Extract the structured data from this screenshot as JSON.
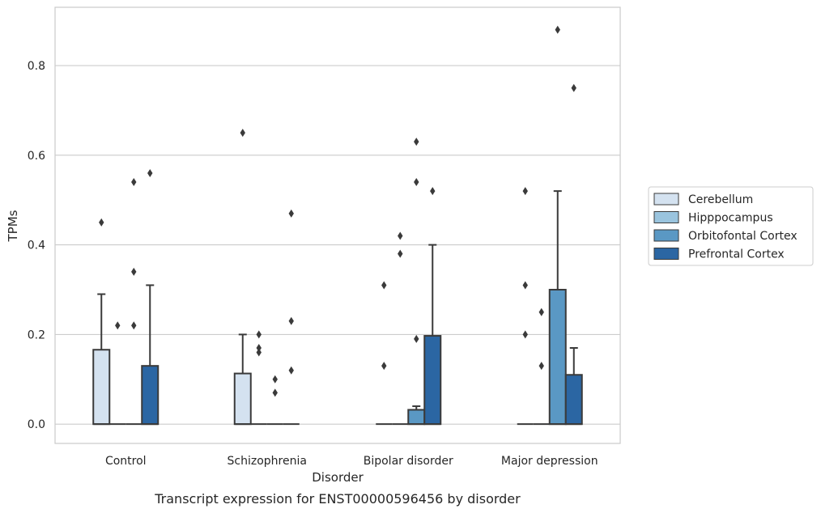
{
  "chart_data": {
    "type": "box",
    "title": "",
    "caption": "Transcript expression for ENST00000596456 by disorder",
    "xlabel": "Disorder",
    "ylabel": "TPMs",
    "ylim": [
      -0.043,
      0.93
    ],
    "yticks": [
      0.0,
      0.2,
      0.4,
      0.6,
      0.8
    ],
    "ytick_labels": [
      "0.0",
      "0.2",
      "0.4",
      "0.6",
      "0.8"
    ],
    "grid": true,
    "legend_position": "right",
    "categories": [
      "Control",
      "Schizophrenia",
      "Bipolar disorder",
      "Major depression"
    ],
    "series": [
      {
        "name": "Cerebellum",
        "color": "#d4e2f0",
        "boxes": [
          {
            "q1": 0.0,
            "median": 0.0,
            "q3": 0.166,
            "whisker_low": 0.0,
            "whisker_high": 0.29,
            "outliers": [
              0.45
            ]
          },
          {
            "q1": 0.0,
            "median": 0.0,
            "q3": 0.113,
            "whisker_low": 0.0,
            "whisker_high": 0.2,
            "outliers": [
              0.65
            ]
          },
          {
            "q1": 0.0,
            "median": 0.0,
            "q3": 0.0,
            "whisker_low": 0.0,
            "whisker_high": 0.0,
            "outliers": [
              0.31,
              0.13
            ]
          },
          {
            "q1": 0.0,
            "median": 0.0,
            "q3": 0.0,
            "whisker_low": 0.0,
            "whisker_high": 0.0,
            "outliers": [
              0.52,
              0.31,
              0.2
            ]
          }
        ]
      },
      {
        "name": "Hipppocampus",
        "color": "#9ac4de",
        "boxes": [
          {
            "q1": 0.0,
            "median": 0.0,
            "q3": 0.0,
            "whisker_low": 0.0,
            "whisker_high": 0.0,
            "outliers": [
              0.22
            ]
          },
          {
            "q1": 0.0,
            "median": 0.0,
            "q3": 0.0,
            "whisker_low": 0.0,
            "whisker_high": 0.0,
            "outliers": [
              0.2,
              0.17,
              0.16
            ]
          },
          {
            "q1": 0.0,
            "median": 0.0,
            "q3": 0.0,
            "whisker_low": 0.0,
            "whisker_high": 0.0,
            "outliers": [
              0.42,
              0.38
            ]
          },
          {
            "q1": 0.0,
            "median": 0.0,
            "q3": 0.0,
            "whisker_low": 0.0,
            "whisker_high": 0.0,
            "outliers": [
              0.25,
              0.13
            ]
          }
        ]
      },
      {
        "name": "Orbitofontal Cortex",
        "color": "#5a98c4",
        "boxes": [
          {
            "q1": 0.0,
            "median": 0.0,
            "q3": 0.0,
            "whisker_low": 0.0,
            "whisker_high": 0.0,
            "outliers": [
              0.54,
              0.34,
              0.22
            ]
          },
          {
            "q1": 0.0,
            "median": 0.0,
            "q3": 0.0,
            "whisker_low": 0.0,
            "whisker_high": 0.0,
            "outliers": [
              0.1,
              0.07
            ]
          },
          {
            "q1": 0.0,
            "median": 0.0,
            "q3": 0.032,
            "whisker_low": 0.0,
            "whisker_high": 0.04,
            "outliers": [
              0.63,
              0.54,
              0.19
            ]
          },
          {
            "q1": 0.0,
            "median": 0.0,
            "q3": 0.3,
            "whisker_low": 0.0,
            "whisker_high": 0.52,
            "outliers": [
              0.88
            ]
          }
        ]
      },
      {
        "name": "Prefrontal Cortex",
        "color": "#2b66a3",
        "boxes": [
          {
            "q1": 0.0,
            "median": 0.0,
            "q3": 0.13,
            "whisker_low": 0.0,
            "whisker_high": 0.31,
            "outliers": [
              0.56
            ]
          },
          {
            "q1": 0.0,
            "median": 0.0,
            "q3": 0.0,
            "whisker_low": 0.0,
            "whisker_high": 0.0,
            "outliers": [
              0.47,
              0.23,
              0.12
            ]
          },
          {
            "q1": 0.0,
            "median": 0.0,
            "q3": 0.197,
            "whisker_low": 0.0,
            "whisker_high": 0.4,
            "outliers": [
              0.52
            ]
          },
          {
            "q1": 0.0,
            "median": 0.0,
            "q3": 0.11,
            "whisker_low": 0.0,
            "whisker_high": 0.17,
            "outliers": [
              0.75
            ]
          }
        ]
      }
    ]
  }
}
